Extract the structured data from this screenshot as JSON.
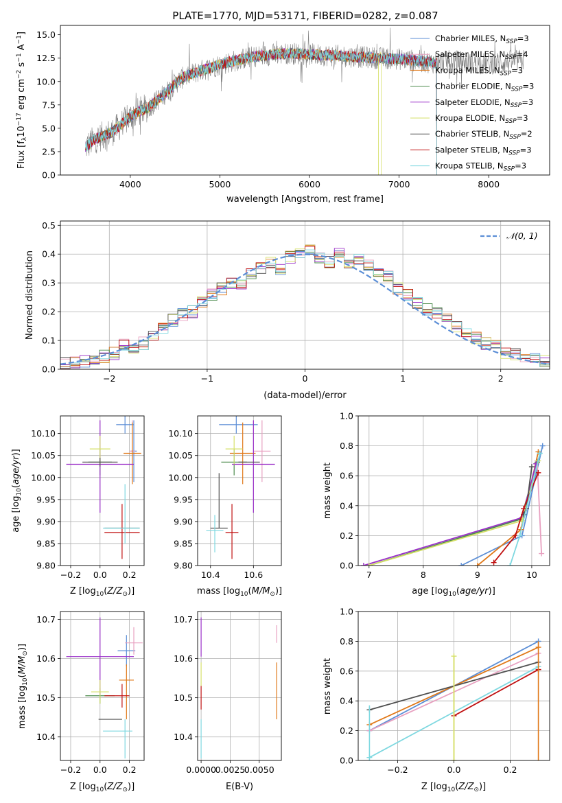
{
  "figure_title": "PLATE=1770, MJD=53171, FIBERID=0282, z=0.087",
  "colors": {
    "s1": "#5b8ed6",
    "s2": "#e8a0c0",
    "s3": "#e07818",
    "s4": "#4a8a4a",
    "s5": "#9a2ec8",
    "s6": "#d6e06a",
    "s7": "#505050",
    "s8": "#c01010",
    "s9": "#7ed8e0",
    "gaussian": "#5b8ed6",
    "grid": "#b0b0b0"
  },
  "chart_data": [
    {
      "id": "spectrum",
      "type": "line",
      "title": "PLATE=1770, MJD=53171, FIBERID=0282, z=0.087",
      "xlabel": "wavelength [Angstrom, rest frame]",
      "ylabel": "Flux [fλ10⁻¹⁷ erg cm⁻² s⁻¹ A⁻¹]",
      "xlim": [
        3220,
        8680
      ],
      "ylim": [
        0,
        16
      ],
      "xticks": [
        4000,
        5000,
        6000,
        7000,
        8000
      ],
      "yticks": [
        0.0,
        2.5,
        5.0,
        7.5,
        10.0,
        12.5,
        15.0
      ],
      "grid": false,
      "legend_position": "top-right",
      "spectrum_envelope": {
        "x": [
          3500,
          3600,
          3700,
          3800,
          3900,
          4000,
          4100,
          4200,
          4300,
          4400,
          4500,
          4600,
          4800,
          5000,
          5200,
          5400,
          5600,
          5800,
          6000,
          6200,
          6400,
          6600,
          6800,
          7000,
          7200,
          7400,
          7500,
          7600,
          7800,
          8000,
          8200,
          8400
        ],
        "y": [
          3.0,
          3.8,
          4.2,
          4.6,
          5.4,
          6.2,
          6.8,
          7.2,
          8.0,
          8.8,
          9.8,
          10.5,
          11.2,
          11.8,
          12.3,
          12.7,
          12.9,
          13.0,
          12.9,
          12.8,
          12.7,
          12.6,
          12.5,
          12.4,
          12.2,
          12.0,
          12.1,
          12.2,
          12.0,
          11.9,
          12.1,
          12.3
        ]
      },
      "series": [
        {
          "name": "Chabrier MILES, Nₛₛₚ=3",
          "label": "Chabrier MILES, N",
          "sub": "SSP",
          "tail": "=3",
          "color_key": "s1"
        },
        {
          "name": "Salpeter MILES, Nₛₛₚ=4",
          "label": "Salpeter MILES, N",
          "sub": "SSP",
          "tail": "=4",
          "color_key": "s2"
        },
        {
          "name": "Kroupa MILES, Nₛₛₚ=3",
          "label": "Kroupa MILES, N",
          "sub": "SSP",
          "tail": "=3",
          "color_key": "s3"
        },
        {
          "name": "Chabrier ELODIE, Nₛₛₚ=3",
          "label": "Chabrier ELODIE, N",
          "sub": "SSP",
          "tail": "=3",
          "color_key": "s4"
        },
        {
          "name": "Salpeter ELODIE, Nₛₛₚ=3",
          "label": "Salpeter ELODIE, N",
          "sub": "SSP",
          "tail": "=3",
          "color_key": "s5"
        },
        {
          "name": "Kroupa ELODIE, Nₛₛₚ=3",
          "label": "Kroupa ELODIE, N",
          "sub": "SSP",
          "tail": "=3",
          "color_key": "s6"
        },
        {
          "name": "Chabrier STELIB, Nₛₛₚ=2",
          "label": "Chabrier STELIB, N",
          "sub": "SSP",
          "tail": "=2",
          "color_key": "s7"
        },
        {
          "name": "Salpeter STELIB, Nₛₛₚ=3",
          "label": "Salpeter STELIB, N",
          "sub": "SSP",
          "tail": "=3",
          "color_key": "s8"
        },
        {
          "name": "Kroupa STELIB, Nₛₛₚ=3",
          "label": "Kroupa STELIB, N",
          "sub": "SSP",
          "tail": "=3",
          "color_key": "s9"
        }
      ]
    },
    {
      "id": "residuals",
      "type": "area",
      "xlabel": "(data-model)/error",
      "ylabel": "Normed distribution",
      "xlim": [
        -2.5,
        2.5
      ],
      "ylim": [
        0,
        0.515
      ],
      "xticks": [
        -2,
        -1,
        0,
        1,
        2
      ],
      "yticks": [
        0.0,
        0.1,
        0.2,
        0.3,
        0.4,
        0.5
      ],
      "grid": true,
      "legend_position": "top-right",
      "legend_label": "𝒩(0, 1)",
      "bin_width": 0.1,
      "histogram": {
        "bin_left": [
          -2.5,
          -2.4,
          -2.3,
          -2.2,
          -2.1,
          -2.0,
          -1.9,
          -1.8,
          -1.7,
          -1.6,
          -1.5,
          -1.4,
          -1.3,
          -1.2,
          -1.1,
          -1.0,
          -0.9,
          -0.8,
          -0.7,
          -0.6,
          -0.5,
          -0.4,
          -0.3,
          -0.2,
          -0.1,
          0.0,
          0.1,
          0.2,
          0.3,
          0.4,
          0.5,
          0.6,
          0.7,
          0.8,
          0.9,
          1.0,
          1.1,
          1.2,
          1.3,
          1.4,
          1.5,
          1.6,
          1.7,
          1.8,
          1.9,
          2.0,
          2.1,
          2.2,
          2.3,
          2.4
        ],
        "mean": [
          0.02,
          0.025,
          0.03,
          0.04,
          0.045,
          0.055,
          0.085,
          0.07,
          0.09,
          0.11,
          0.14,
          0.17,
          0.19,
          0.2,
          0.23,
          0.26,
          0.28,
          0.3,
          0.3,
          0.33,
          0.35,
          0.37,
          0.35,
          0.39,
          0.4,
          0.41,
          0.39,
          0.37,
          0.41,
          0.37,
          0.38,
          0.36,
          0.33,
          0.32,
          0.28,
          0.26,
          0.23,
          0.21,
          0.2,
          0.17,
          0.15,
          0.13,
          0.11,
          0.09,
          0.08,
          0.06,
          0.05,
          0.045,
          0.04,
          0.03
        ]
      },
      "gaussian": {
        "mu": 0,
        "sigma": 1
      }
    },
    {
      "id": "age_vs_Z",
      "type": "scatter",
      "xlabel": "Z [log₁₀(Z/Z⊙)]",
      "ylabel": "age  [log₁₀(age/yr)]",
      "xlim": [
        -0.27,
        0.3
      ],
      "ylim": [
        9.8,
        10.14
      ],
      "xticks": [
        -0.2,
        0.0,
        0.2
      ],
      "yticks": [
        9.8,
        9.85,
        9.9,
        9.95,
        10.0,
        10.05,
        10.1
      ],
      "grid": true,
      "points": [
        {
          "color_key": "s1",
          "x": 0.17,
          "y": 10.12,
          "xerr": [
            0.06,
            0.06
          ],
          "yerr": [
            0.02,
            0.02
          ]
        },
        {
          "color_key": "s1",
          "x": 0.23,
          "y": 10.06,
          "xerr": [
            0.02,
            0.02
          ],
          "yerr": [
            0.07,
            0.07
          ]
        },
        {
          "color_key": "s2",
          "x": 0.22,
          "y": 10.06,
          "xerr": [
            0.02,
            0.02
          ],
          "yerr": [
            0.07,
            0.07
          ]
        },
        {
          "color_key": "s3",
          "x": 0.22,
          "y": 10.055,
          "xerr": [
            0.06,
            0.06
          ],
          "yerr": [
            0.07,
            0.07
          ]
        },
        {
          "color_key": "s4",
          "x": 0.0,
          "y": 10.035,
          "xerr": [
            0.08,
            0.08
          ],
          "yerr": [
            0.03,
            0.03
          ]
        },
        {
          "color_key": "s5",
          "x": 0.0,
          "y": 10.03,
          "xerr": [
            0.23,
            0.23
          ],
          "yerr": [
            0.11,
            0.1
          ]
        },
        {
          "color_key": "s6",
          "x": 0.0,
          "y": 10.065,
          "xerr": [
            0.07,
            0.07
          ],
          "yerr": [
            0.035,
            0.03
          ]
        },
        {
          "color_key": "s7",
          "x": 0.0,
          "y": 10.035,
          "xerr": [
            0.12,
            0.12
          ],
          "yerr": [
            0.01,
            0.01
          ]
        },
        {
          "color_key": "s7",
          "x": 0.15,
          "y": 9.885,
          "xerr": [
            0.12,
            0.12
          ],
          "yerr": [
            0.0,
            0.0
          ]
        },
        {
          "color_key": "s8",
          "x": 0.15,
          "y": 9.875,
          "xerr": [
            0.12,
            0.12
          ],
          "yerr": [
            0.06,
            0.065
          ]
        },
        {
          "color_key": "s9",
          "x": 0.17,
          "y": 9.885,
          "xerr": [
            0.15,
            0.1
          ],
          "yerr": [
            0.035,
            0.1
          ]
        }
      ]
    },
    {
      "id": "age_vs_mass",
      "type": "scatter",
      "xlabel": "mass [log₁₀(M/M⊙)]",
      "xlim": [
        10.34,
        10.73
      ],
      "ylim": [
        9.8,
        10.14
      ],
      "xticks": [
        10.4,
        10.6
      ],
      "yticks": [
        9.8,
        9.85,
        9.9,
        9.95,
        10.0,
        10.05,
        10.1
      ],
      "grid": true,
      "points": [
        {
          "color_key": "s1",
          "x": 10.52,
          "y": 10.12,
          "xerr": [
            0.08,
            0.1
          ],
          "yerr": [
            0.02,
            0.02
          ]
        },
        {
          "color_key": "s2",
          "x": 10.64,
          "y": 10.06,
          "xerr": [
            0.04,
            0.04
          ],
          "yerr": [
            0.07,
            0.07
          ]
        },
        {
          "color_key": "s3",
          "x": 10.55,
          "y": 10.055,
          "xerr": [
            0.06,
            0.06
          ],
          "yerr": [
            0.07,
            0.07
          ]
        },
        {
          "color_key": "s4",
          "x": 10.51,
          "y": 10.035,
          "xerr": [
            0.06,
            0.06
          ],
          "yerr": [
            0.03,
            0.03
          ]
        },
        {
          "color_key": "s5",
          "x": 10.6,
          "y": 10.03,
          "xerr": [
            0.1,
            0.1
          ],
          "yerr": [
            0.11,
            0.1
          ]
        },
        {
          "color_key": "s6",
          "x": 10.51,
          "y": 10.065,
          "xerr": [
            0.04,
            0.04
          ],
          "yerr": [
            0.035,
            0.03
          ]
        },
        {
          "color_key": "s7",
          "x": 10.44,
          "y": 9.885,
          "xerr": [
            0.04,
            0.04
          ],
          "yerr": [
            0.0,
            0.125
          ]
        },
        {
          "color_key": "s7",
          "x": 10.58,
          "y": 10.035,
          "xerr": [
            0.05,
            0.05
          ],
          "yerr": [
            0.0,
            0.0
          ]
        },
        {
          "color_key": "s8",
          "x": 10.5,
          "y": 9.875,
          "xerr": [
            0.03,
            0.03
          ],
          "yerr": [
            0.06,
            0.065
          ]
        },
        {
          "color_key": "s9",
          "x": 10.42,
          "y": 9.88,
          "xerr": [
            0.04,
            0.04
          ],
          "yerr": [
            0.05,
            0.035
          ]
        }
      ]
    },
    {
      "id": "mass_weight_vs_age",
      "type": "line",
      "xlabel": "age  [log₁₀(age/yr)]",
      "ylabel": "mass weight",
      "xlim": [
        6.8,
        10.33
      ],
      "ylim": [
        0,
        1.0
      ],
      "xticks": [
        7,
        8,
        9,
        10
      ],
      "yticks": [
        0.0,
        0.2,
        0.4,
        0.6,
        0.8,
        1.0
      ],
      "grid": true,
      "series": [
        {
          "color_key": "s1",
          "x": [
            8.7,
            9.82,
            10.2
          ],
          "y": [
            0.0,
            0.2,
            0.8
          ]
        },
        {
          "color_key": "s2",
          "x": [
            10.1,
            10.18
          ],
          "y": [
            0.7,
            0.08
          ]
        },
        {
          "color_key": "s3",
          "x": [
            9.0,
            9.8,
            10.12
          ],
          "y": [
            0.0,
            0.24,
            0.76
          ]
        },
        {
          "color_key": "s4",
          "x": [
            7.0,
            9.8,
            10.1
          ],
          "y": [
            0.0,
            0.31,
            0.69
          ]
        },
        {
          "color_key": "s5",
          "x": [
            6.9,
            9.82,
            10.08
          ],
          "y": [
            0.0,
            0.32,
            0.68
          ]
        },
        {
          "color_key": "s6",
          "x": [
            7.0,
            9.82,
            10.12
          ],
          "y": [
            0.0,
            0.3,
            0.7
          ]
        },
        {
          "color_key": "s7",
          "x": [
            9.85,
            9.9,
            10.0
          ],
          "y": [
            0.34,
            0.38,
            0.66
          ]
        },
        {
          "color_key": "s8",
          "x": [
            9.3,
            9.7,
            9.85,
            10.12
          ],
          "y": [
            0.02,
            0.2,
            0.38,
            0.62
          ]
        },
        {
          "color_key": "s9",
          "x": [
            9.6,
            9.78,
            10.15
          ],
          "y": [
            0.0,
            0.2,
            0.75
          ]
        }
      ]
    },
    {
      "id": "mass_vs_Z",
      "type": "scatter",
      "xlabel": "Z [log₁₀(Z/Z⊙)]",
      "ylabel": "mass [log₁₀(M/M⊙)]",
      "xlim": [
        -0.27,
        0.3
      ],
      "ylim": [
        10.34,
        10.72
      ],
      "xticks": [
        -0.2,
        0.0,
        0.2
      ],
      "yticks": [
        10.4,
        10.5,
        10.6,
        10.7
      ],
      "grid": true,
      "points": [
        {
          "color_key": "s1",
          "x": 0.18,
          "y": 10.62,
          "xerr": [
            0.06,
            0.06
          ],
          "yerr": [
            0.04,
            0.04
          ]
        },
        {
          "color_key": "s2",
          "x": 0.23,
          "y": 10.64,
          "xerr": [
            0.06,
            0.06
          ],
          "yerr": [
            0.03,
            0.04
          ]
        },
        {
          "color_key": "s3",
          "x": 0.18,
          "y": 10.545,
          "xerr": [
            0.05,
            0.05
          ],
          "yerr": [
            0.1,
            0.04
          ]
        },
        {
          "color_key": "s4",
          "x": 0.0,
          "y": 10.505,
          "xerr": [
            0.1,
            0.1
          ],
          "yerr": [
            0.02,
            0.02
          ]
        },
        {
          "color_key": "s5",
          "x": 0.0,
          "y": 10.605,
          "xerr": [
            0.23,
            0.23
          ],
          "yerr": [
            0.1,
            0.1
          ]
        },
        {
          "color_key": "s6",
          "x": 0.0,
          "y": 10.515,
          "xerr": [
            0.06,
            0.06
          ],
          "yerr": [
            0.03,
            0.03
          ]
        },
        {
          "color_key": "s7",
          "x": 0.07,
          "y": 10.445,
          "xerr": [
            0.08,
            0.08
          ],
          "yerr": [
            0.0,
            0.0
          ]
        },
        {
          "color_key": "s8",
          "x": 0.15,
          "y": 10.505,
          "xerr": [
            0.12,
            0.05
          ],
          "yerr": [
            0.03,
            0.03
          ]
        },
        {
          "color_key": "s9",
          "x": 0.17,
          "y": 10.415,
          "xerr": [
            0.15,
            0.05
          ],
          "yerr": [
            0.07,
            0.03
          ]
        }
      ]
    },
    {
      "id": "mass_vs_EBV",
      "type": "scatter",
      "xlabel": "E(B-V)",
      "xlim": [
        -0.0003,
        0.0069
      ],
      "ylim": [
        10.34,
        10.72
      ],
      "xticks": [
        0.0,
        0.0025,
        0.005
      ],
      "xtick_labels": [
        "0.0000",
        "0.0025",
        "0.0050"
      ],
      "yticks": [
        10.4,
        10.5,
        10.6,
        10.7
      ],
      "grid": true,
      "points": [
        {
          "color_key": "s5",
          "x": 0.0,
          "y": 10.605,
          "yerr": [
            0.0,
            0.1
          ]
        },
        {
          "color_key": "s6",
          "x": 0.0,
          "y": 10.56,
          "yerr": [
            0.03,
            0.03
          ]
        },
        {
          "color_key": "s8",
          "x": 0.0,
          "y": 10.5,
          "yerr": [
            0.03,
            0.03
          ]
        },
        {
          "color_key": "s9",
          "x": 0.0,
          "y": 10.415,
          "yerr": [
            0.07,
            0.03
          ]
        },
        {
          "color_key": "s2",
          "x": 0.0065,
          "y": 10.64,
          "yerr": [
            0.0,
            0.045
          ]
        },
        {
          "color_key": "s3",
          "x": 0.0065,
          "y": 10.545,
          "yerr": [
            0.1,
            0.045
          ]
        }
      ]
    },
    {
      "id": "mass_weight_vs_Z",
      "type": "line",
      "xlabel": "Z [log₁₀(Z/Z⊙)]",
      "ylabel": "mass weight",
      "xlim": [
        -0.34,
        0.34
      ],
      "ylim": [
        0,
        1.0
      ],
      "xticks": [
        -0.2,
        0.0,
        0.2
      ],
      "yticks": [
        0.0,
        0.2,
        0.4,
        0.6,
        0.8,
        1.0
      ],
      "grid": true,
      "series": [
        {
          "color_key": "s1",
          "x": [
            -0.3,
            0.3
          ],
          "y": [
            0.2,
            0.8
          ]
        },
        {
          "color_key": "s2",
          "x": [
            -0.3,
            0.3
          ],
          "y": [
            0.2,
            0.72
          ]
        },
        {
          "color_key": "s3",
          "x": [
            -0.3,
            0.3
          ],
          "y": [
            0.24,
            0.76
          ]
        },
        {
          "color_key": "s7",
          "x": [
            -0.3,
            0.3
          ],
          "y": [
            0.34,
            0.66
          ]
        },
        {
          "color_key": "s8",
          "x": [
            0.0,
            0.3
          ],
          "y": [
            0.3,
            0.61
          ]
        },
        {
          "color_key": "s9",
          "x": [
            -0.3,
            0.3
          ],
          "y": [
            0.02,
            0.63
          ]
        },
        {
          "color_key": "s6",
          "x": [
            0.0,
            0.0
          ],
          "y": [
            0.0,
            0.7
          ]
        }
      ]
    }
  ]
}
